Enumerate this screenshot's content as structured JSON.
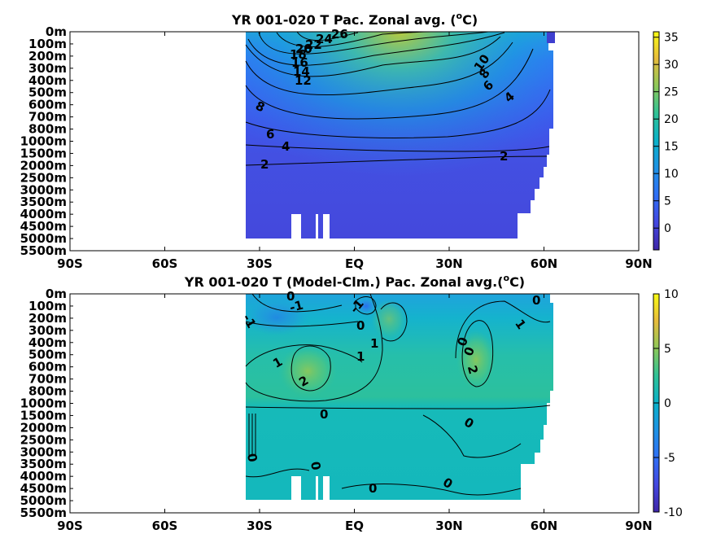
{
  "chart_data": [
    {
      "type": "heatmap",
      "title": "YR 001-020 T Pac. Zonal avg. (",
      "title_sup": "o",
      "title_end": "C)",
      "x_ticks": [
        "90S",
        "60S",
        "30S",
        "EQ",
        "30N",
        "60N",
        "90N"
      ],
      "y_ticks": [
        "0m",
        "100m",
        "200m",
        "300m",
        "400m",
        "500m",
        "600m",
        "700m",
        "800m",
        "1000m",
        "1500m",
        "2000m",
        "2500m",
        "3000m",
        "3500m",
        "4000m",
        "4500m",
        "5000m",
        "5500m"
      ],
      "colorbar_ticks": [
        "35",
        "30",
        "25",
        "20",
        "15",
        "10",
        "5",
        "0"
      ],
      "colorbar_range": [
        -4,
        36
      ],
      "contour_labels": [
        "26",
        "24",
        "22",
        "20",
        "18",
        "16",
        "14",
        "12",
        "10",
        "8",
        "8",
        "6",
        "6",
        "4",
        "4",
        "2",
        "2"
      ],
      "grid": false,
      "colormap": "parula"
    },
    {
      "type": "heatmap",
      "title": "YR 001-020 T (Model-Clm.) Pac. Zonal avg.(",
      "title_sup": "o",
      "title_end": "C)",
      "x_ticks": [
        "90S",
        "60S",
        "30S",
        "EQ",
        "30N",
        "60N",
        "90N"
      ],
      "y_ticks": [
        "0m",
        "100m",
        "200m",
        "300m",
        "400m",
        "500m",
        "600m",
        "700m",
        "800m",
        "1000m",
        "1500m",
        "2000m",
        "2500m",
        "3000m",
        "3500m",
        "4000m",
        "4500m",
        "5000m",
        "5500m"
      ],
      "colorbar_ticks": [
        "10",
        "5",
        "0",
        "-5",
        "-10"
      ],
      "colorbar_range": [
        -10,
        10
      ],
      "contour_labels": [
        "0",
        "-1",
        "-1",
        "-1",
        "0",
        "0",
        "1",
        "1",
        "1",
        "2",
        "2",
        "0",
        "0",
        "1",
        "0",
        "0",
        "0",
        "0",
        "0"
      ],
      "grid": false,
      "colormap": "parula"
    }
  ]
}
